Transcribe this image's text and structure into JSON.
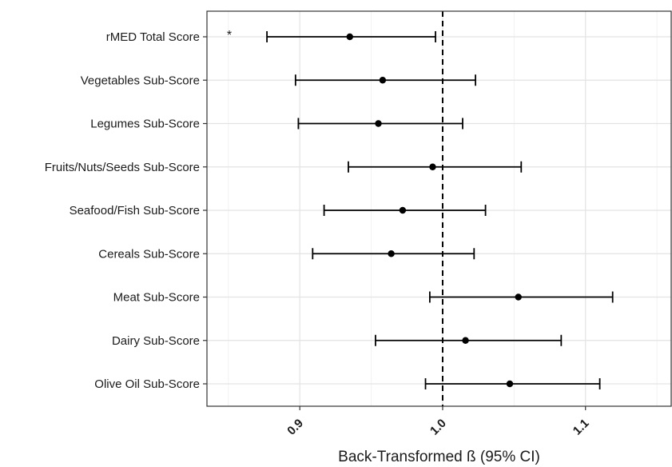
{
  "chart_data": {
    "type": "forest",
    "xlabel": "Back-Transformed ß (95% CI)",
    "ylabel": "",
    "xlim": [
      0.835,
      1.16
    ],
    "xticks": [
      {
        "value": 0.9,
        "label": "0.9"
      },
      {
        "value": 1.0,
        "label": "1.0"
      },
      {
        "value": 1.1,
        "label": "1.1"
      }
    ],
    "reference_line": 1.0,
    "grid": true,
    "colors": {
      "marker": "#000000",
      "grid_major": "#e3e3e3",
      "grid_minor": "#f2f2f2",
      "panel_border": "#333333"
    },
    "rows": [
      {
        "label": "rMED Total Score",
        "estimate": 0.935,
        "lower": 0.877,
        "upper": 0.995,
        "annotation": "*"
      },
      {
        "label": "Vegetables Sub-Score",
        "estimate": 0.958,
        "lower": 0.897,
        "upper": 1.023,
        "annotation": ""
      },
      {
        "label": "Legumes Sub-Score",
        "estimate": 0.955,
        "lower": 0.899,
        "upper": 1.014,
        "annotation": ""
      },
      {
        "label": "Fruits/Nuts/Seeds Sub-Score",
        "estimate": 0.993,
        "lower": 0.934,
        "upper": 1.055,
        "annotation": ""
      },
      {
        "label": "Seafood/Fish Sub-Score",
        "estimate": 0.972,
        "lower": 0.917,
        "upper": 1.03,
        "annotation": ""
      },
      {
        "label": "Cereals Sub-Score",
        "estimate": 0.964,
        "lower": 0.909,
        "upper": 1.022,
        "annotation": ""
      },
      {
        "label": "Meat Sub-Score",
        "estimate": 1.053,
        "lower": 0.991,
        "upper": 1.119,
        "annotation": ""
      },
      {
        "label": "Dairy Sub-Score",
        "estimate": 1.016,
        "lower": 0.953,
        "upper": 1.083,
        "annotation": ""
      },
      {
        "label": "Olive Oil Sub-Score",
        "estimate": 1.047,
        "lower": 0.988,
        "upper": 1.11,
        "annotation": ""
      }
    ]
  }
}
